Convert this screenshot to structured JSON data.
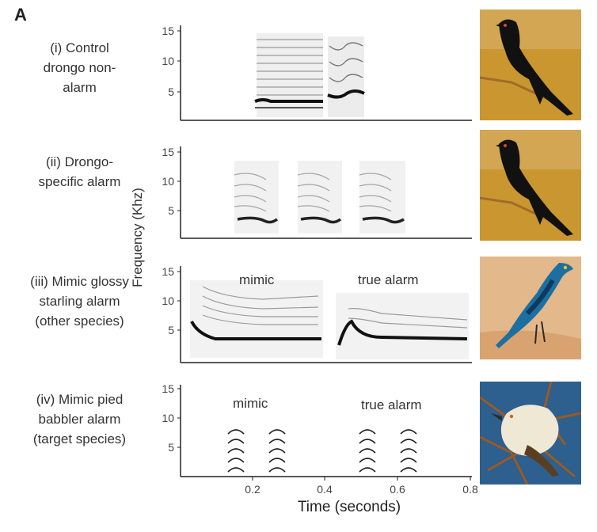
{
  "figure": {
    "panel_letter": "A",
    "y_axis_label": "Frequency (Khz)",
    "x_axis_label": "Time (seconds)",
    "y_ticks": [
      "15",
      "10",
      "5"
    ],
    "x_ticks": [
      "0.2",
      "0.4",
      "0.6",
      "0.8"
    ]
  },
  "rows": [
    {
      "label_lines": [
        "(i) Control",
        "drongo non-",
        "alarm"
      ],
      "annotations": []
    },
    {
      "label_lines": [
        "(ii) Drongo-",
        "specific alarm"
      ],
      "annotations": []
    },
    {
      "label_lines": [
        "(iii) Mimic glossy",
        "starling alarm",
        "(other species)"
      ],
      "annotations": [
        "mimic",
        "true alarm"
      ]
    },
    {
      "label_lines": [
        "(iv) Mimic pied",
        "babbler alarm",
        "(target species)"
      ],
      "annotations": [
        "mimic",
        "true alarm"
      ]
    }
  ],
  "photos": [
    {
      "subject": "fork-tailed drongo",
      "palette": [
        "#c9962f",
        "#111111"
      ]
    },
    {
      "subject": "fork-tailed drongo",
      "palette": [
        "#c9962f",
        "#111111"
      ]
    },
    {
      "subject": "glossy starling",
      "palette": [
        "#e3b98c",
        "#1d6fa1"
      ]
    },
    {
      "subject": "pied babbler",
      "palette": [
        "#2d5f8f",
        "#efe8d4"
      ]
    }
  ]
}
